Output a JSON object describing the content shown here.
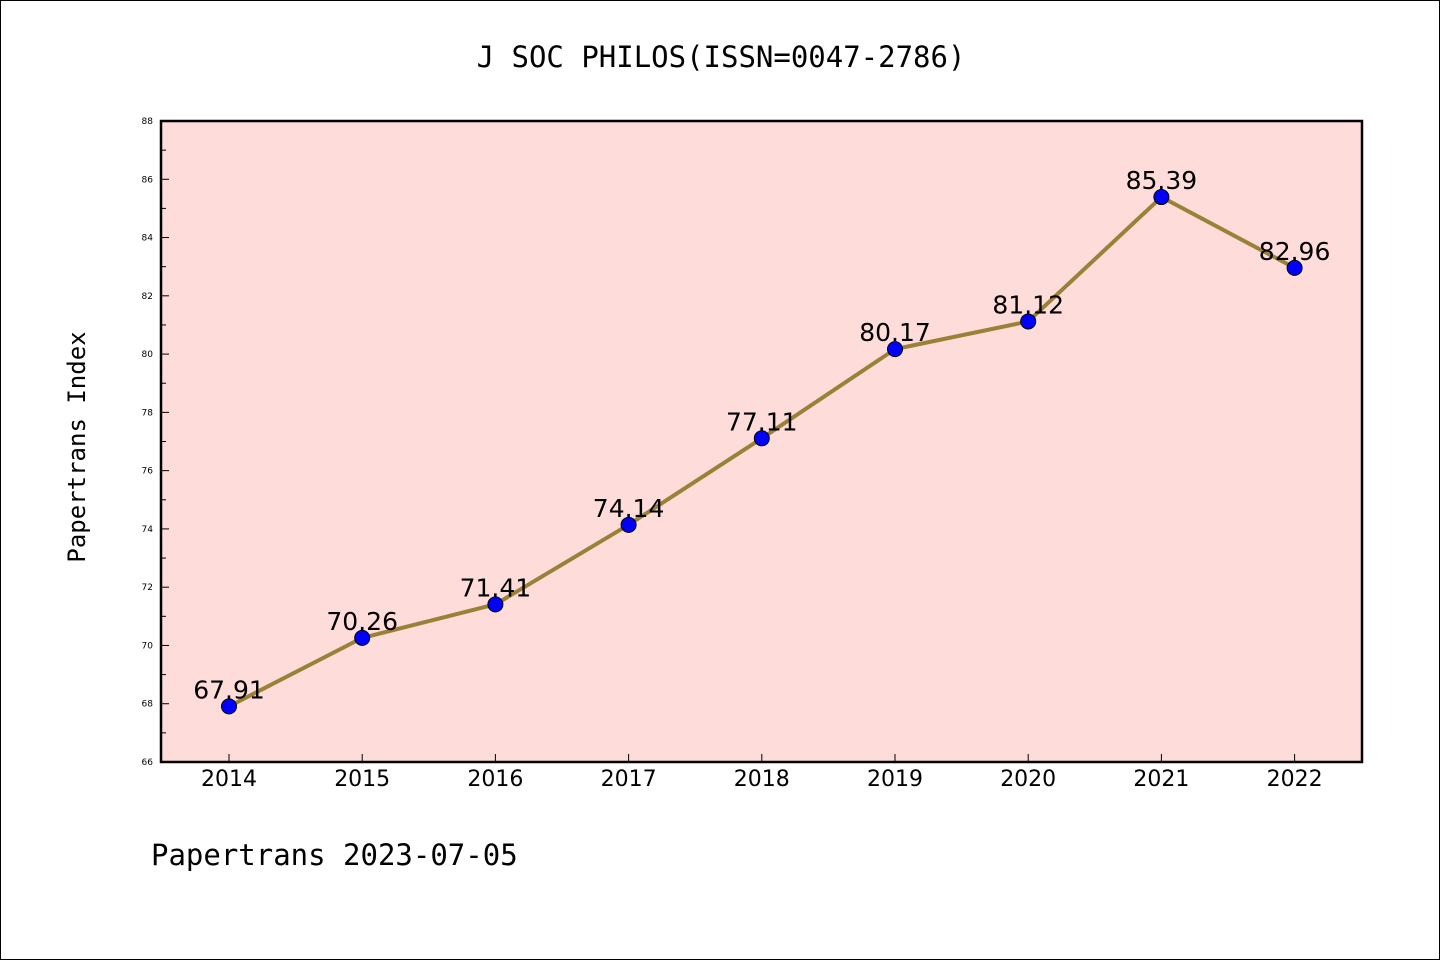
{
  "chart_data": {
    "type": "line",
    "title": "J SOC PHILOS(ISSN=0047-2786)",
    "xlabel": "",
    "ylabel": "Papertrans Index",
    "footer": "Papertrans 2023-07-05",
    "categories": [
      "2014",
      "2015",
      "2016",
      "2017",
      "2018",
      "2019",
      "2020",
      "2021",
      "2022"
    ],
    "series": [
      {
        "values": [
          67.91,
          70.26,
          71.41,
          74.14,
          77.11,
          80.17,
          81.12,
          85.39,
          82.96
        ],
        "labels": [
          "67.91",
          "70.26",
          "71.41",
          "74.14",
          "77.11",
          "80.17",
          "81.12",
          "85.39",
          "82.96"
        ]
      }
    ],
    "ylim": [
      66,
      88
    ],
    "yticks": [
      "66",
      "68",
      "70",
      "72",
      "74",
      "76",
      "78",
      "80",
      "82",
      "84",
      "86",
      "88"
    ],
    "grid": false,
    "legend": "none",
    "colors": {
      "plot_background": "#FDDCDA",
      "line": "#9B8137",
      "marker": "#0000FF",
      "axes": "#000000"
    }
  }
}
